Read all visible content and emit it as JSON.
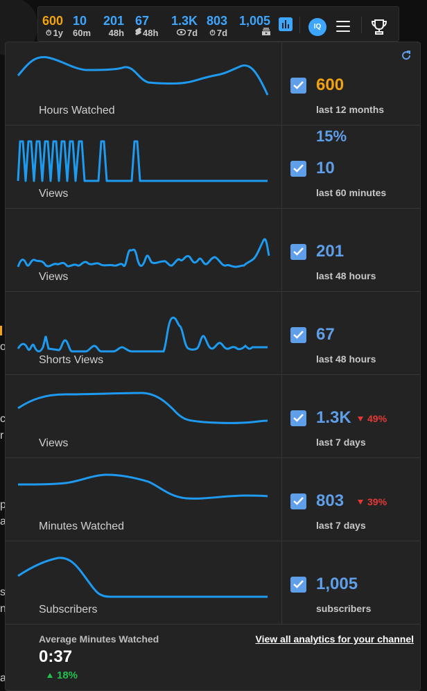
{
  "background": {
    "fragments": [
      "o",
      "c",
      "r",
      "p",
      "a",
      "s",
      "n",
      "a"
    ]
  },
  "stats_bar": {
    "stats": [
      {
        "value": "600",
        "label": "1y",
        "icon": "timer-icon",
        "color": "#f2a30f"
      },
      {
        "value": "10",
        "label": "60m",
        "icon": "",
        "color": "#3ea6ff"
      },
      {
        "value": "201",
        "label": "48h",
        "icon": "",
        "color": "#3ea6ff"
      },
      {
        "value": "67",
        "label": "48h",
        "icon": "shorts-icon",
        "color": "#3ea6ff"
      },
      {
        "value": "1.3K",
        "label": "7d",
        "icon": "eye-icon",
        "color": "#3ea6ff"
      },
      {
        "value": "803",
        "label": "7d",
        "icon": "timer-icon",
        "color": "#3ea6ff"
      },
      {
        "value": "1,005",
        "label": "",
        "icon": "subscriptions-icon",
        "color": "#3ea6ff"
      }
    ],
    "buttons": [
      "bar-chart-icon",
      "iq-icon",
      "menu-icon",
      "trophy-icon"
    ],
    "iq_text": "IQ"
  },
  "panel": {
    "rows": [
      {
        "chart_label": "Hours Watched",
        "value": "600",
        "sub": "last 12 months",
        "checked": true,
        "value_color": "#f2a30f"
      },
      {
        "chart_label": "Views",
        "value": "10",
        "sub": "last 60 minutes",
        "checked": true,
        "extra": "15%"
      },
      {
        "chart_label": "Views",
        "value": "201",
        "sub": "last 48 hours",
        "checked": true
      },
      {
        "chart_label": "Shorts Views",
        "value": "67",
        "sub": "last 48 hours",
        "checked": true
      },
      {
        "chart_label": "Views",
        "value": "1.3K",
        "sub": "last 7 days",
        "checked": true,
        "change": "49%",
        "change_dir": "down"
      },
      {
        "chart_label": "Minutes Watched",
        "value": "803",
        "sub": "last 7 days",
        "checked": true,
        "change": "39%",
        "change_dir": "down"
      },
      {
        "chart_label": "Subscribers",
        "value": "1,005",
        "sub": "subscribers",
        "checked": true
      }
    ],
    "footer": {
      "title": "Average Minutes Watched",
      "value": "0:37",
      "change": "18%",
      "change_dir": "up",
      "link": "View all analytics for your channel"
    },
    "colors": {
      "line": "#1e9bf0",
      "accent": "#5f9ee8",
      "down": "#e53935",
      "up": "#23c14f",
      "orange": "#f2a30f"
    }
  }
}
